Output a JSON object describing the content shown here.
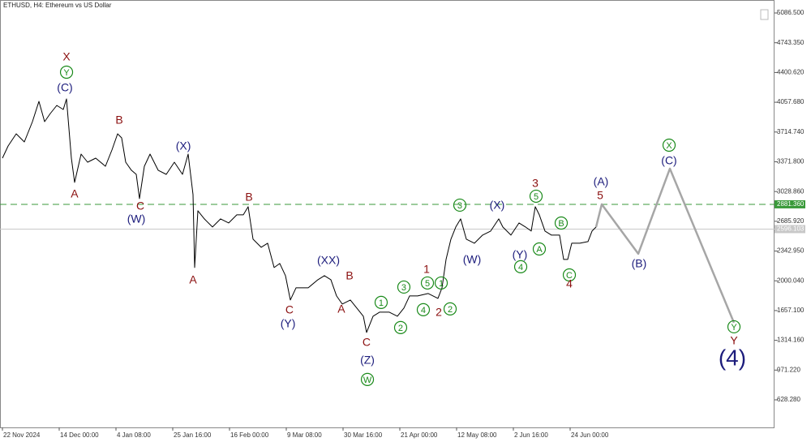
{
  "chart_data": {
    "type": "line",
    "title": "ETHUSD, H4:  Ethereum vs US Dollar",
    "xlim": [
      -0.043,
      13.6
    ],
    "ylim": [
      310.6,
      5217.3
    ],
    "xticks": [
      {
        "value": 0,
        "label": "22 Nov 2024"
      },
      {
        "value": 1,
        "label": "14 Dec 00:00"
      },
      {
        "value": 2,
        "label": "4 Jan 08:00"
      },
      {
        "value": 3,
        "label": "25 Jan 16:00"
      },
      {
        "value": 4,
        "label": "16 Feb 00:00"
      },
      {
        "value": 5,
        "label": "9 Mar 08:00"
      },
      {
        "value": 6,
        "label": "30 Mar 16:00"
      },
      {
        "value": 7,
        "label": "21 Apr 00:00"
      },
      {
        "value": 8,
        "label": "12 May 08:00"
      },
      {
        "value": 9,
        "label": "2 Jun 16:00"
      },
      {
        "value": 10,
        "label": "24 Jun 00:00"
      }
    ],
    "yticks": [
      {
        "value": 628.28,
        "label": "628.280"
      },
      {
        "value": 971.22,
        "label": "971.220"
      },
      {
        "value": 1314.16,
        "label": "1314.160"
      },
      {
        "value": 1657.1,
        "label": "1657.100"
      },
      {
        "value": 2000.04,
        "label": "2000.040"
      },
      {
        "value": 2342.95,
        "label": "2342.950"
      },
      {
        "value": 2685.92,
        "label": "2685.920"
      },
      {
        "value": 3028.86,
        "label": "3028.860"
      },
      {
        "value": 3371.8,
        "label": "3371.800"
      },
      {
        "value": 3714.74,
        "label": "3714.740"
      },
      {
        "value": 4057.68,
        "label": "4057.680"
      },
      {
        "value": 4400.62,
        "label": "4400.620"
      },
      {
        "value": 4743.35,
        "label": "4743.350"
      },
      {
        "value": 5086.5,
        "label": "5086.500"
      }
    ],
    "series": [
      {
        "color": "#000000",
        "x": [
          0,
          0.1,
          0.243,
          0.386,
          0.529,
          0.643,
          0.743,
          0.843,
          0.957,
          1.071,
          1.129,
          1.214,
          1.271,
          1.386,
          1.5,
          1.643,
          1.814,
          1.929,
          2.029,
          2.1,
          2.171,
          2.271,
          2.357,
          2.414,
          2.5,
          2.6,
          2.743,
          2.886,
          3.029,
          3.171,
          3.271,
          3.357,
          3.386,
          3.443,
          3.557,
          3.7,
          3.843,
          3.986,
          4.129,
          4.243,
          4.329,
          4.414,
          4.557,
          4.671,
          4.786,
          4.886,
          4.986,
          5.071,
          5.171,
          5.386,
          5.557,
          5.671,
          5.786,
          5.886,
          5.986,
          6.129,
          6.243,
          6.357,
          6.414,
          6.529,
          6.643,
          6.814,
          6.957,
          7.071,
          7.171,
          7.314,
          7.5,
          7.671,
          7.743,
          7.814,
          7.9,
          7.986,
          8.071,
          8.171,
          8.314,
          8.457,
          8.6,
          8.743,
          8.814,
          8.957,
          9.1,
          9.214,
          9.314,
          9.386,
          9.457,
          9.557,
          9.671,
          9.814,
          9.886,
          9.957,
          10.029,
          10.171,
          10.314,
          10.386,
          10.457
        ],
        "values": [
          3413.9,
          3554.1,
          3694.2,
          3600.8,
          3834.4,
          4068.0,
          3834.4,
          3927.8,
          4021.3,
          3974.6,
          4096.0,
          3413.9,
          3133.6,
          3460.6,
          3367.2,
          3413.9,
          3320.5,
          3507.4,
          3694.2,
          3647.5,
          3367.2,
          3273.8,
          3227.0,
          2946.7,
          3320.5,
          3460.6,
          3273.8,
          3227.0,
          3367.2,
          3227.0,
          3460.6,
          2993.4,
          2152.5,
          2806.6,
          2713.1,
          2619.7,
          2713.1,
          2666.4,
          2759.8,
          2759.8,
          2853.3,
          2479.5,
          2386.1,
          2432.8,
          2152.5,
          2199.2,
          2059.0,
          1778.7,
          1918.9,
          1918.9,
          2012.3,
          2059.0,
          2012.3,
          1825.4,
          1732.0,
          1778.7,
          1685.3,
          1591.8,
          1405.0,
          1591.8,
          1638.5,
          1638.5,
          1591.8,
          1685.3,
          1825.4,
          1825.4,
          1853.5,
          1797.4,
          1918.9,
          2245.9,
          2479.5,
          2619.7,
          2713.1,
          2479.5,
          2432.8,
          2526.2,
          2573.0,
          2713.1,
          2619.7,
          2526.2,
          2666.4,
          2619.7,
          2573.0,
          2853.3,
          2759.8,
          2573.0,
          2526.2,
          2526.2,
          2245.9,
          2245.9,
          2432.8,
          2432.8,
          2451.5,
          2573.0,
          2619.7
        ]
      },
      {
        "color": "#a6a6a6",
        "x": [
          10.457,
          10.557,
          11.2,
          11.757,
          12.886
        ],
        "values": [
          2619.7,
          2881.3,
          2311.3,
          3292.5,
          1517.1
        ]
      }
    ],
    "hlines": [
      {
        "value": 2881.36,
        "label": "2881.360",
        "color": "#3a9a3a",
        "dashed": true
      },
      {
        "value": 2596.103,
        "label": "2596.103",
        "color": "#c8c8c8",
        "dashed": false
      }
    ],
    "wave_colors": {
      "red": "#8b1010",
      "navy": "#1c1c7c",
      "green": "#1a8a1a"
    },
    "annotations": [
      {
        "text": "X",
        "x": 1.129,
        "y": 4582,
        "color": "red"
      },
      {
        "text": "Y",
        "x": 1.129,
        "y": 4404,
        "color": "green",
        "circled": true
      },
      {
        "text": "(C)",
        "x": 1.1,
        "y": 4227,
        "color": "navy"
      },
      {
        "text": "B",
        "x": 2.057,
        "y": 3853,
        "color": "red"
      },
      {
        "text": "A",
        "x": 1.271,
        "y": 3003,
        "color": "red"
      },
      {
        "text": "C",
        "x": 2.429,
        "y": 2863,
        "color": "red"
      },
      {
        "text": "(W)",
        "x": 2.357,
        "y": 2713,
        "color": "navy"
      },
      {
        "text": "(X)",
        "x": 3.186,
        "y": 3554,
        "color": "navy"
      },
      {
        "text": "A",
        "x": 3.357,
        "y": 2012,
        "color": "red"
      },
      {
        "text": "B",
        "x": 4.343,
        "y": 2965,
        "color": "red"
      },
      {
        "text": "C",
        "x": 5.057,
        "y": 1667,
        "color": "red"
      },
      {
        "text": "(Y)",
        "x": 5.029,
        "y": 1508,
        "color": "navy"
      },
      {
        "text": "(XX)",
        "x": 5.743,
        "y": 2237,
        "color": "navy"
      },
      {
        "text": "B",
        "x": 6.114,
        "y": 2059,
        "color": "red"
      },
      {
        "text": "A",
        "x": 5.971,
        "y": 1676,
        "color": "red"
      },
      {
        "text": "1",
        "x": 6.671,
        "y": 1751,
        "color": "green",
        "circled": true
      },
      {
        "text": "C",
        "x": 6.414,
        "y": 1293,
        "color": "red"
      },
      {
        "text": "(Z)",
        "x": 6.429,
        "y": 1087,
        "color": "navy"
      },
      {
        "text": "W",
        "x": 6.429,
        "y": 863,
        "color": "green",
        "circled": true
      },
      {
        "text": "2",
        "x": 7.014,
        "y": 1461,
        "color": "green",
        "circled": true
      },
      {
        "text": "3",
        "x": 7.071,
        "y": 1928,
        "color": "green",
        "circled": true
      },
      {
        "text": "4",
        "x": 7.414,
        "y": 1667,
        "color": "green",
        "circled": true
      },
      {
        "text": "5",
        "x": 7.486,
        "y": 1975,
        "color": "green",
        "circled": true
      },
      {
        "text": "1",
        "x": 7.729,
        "y": 1975,
        "color": "green",
        "circled": true
      },
      {
        "text": "1",
        "x": 7.471,
        "y": 2134,
        "color": "red"
      },
      {
        "text": "2",
        "x": 7.686,
        "y": 1639,
        "color": "red"
      },
      {
        "text": "2",
        "x": 7.886,
        "y": 1676,
        "color": "green",
        "circled": true
      },
      {
        "text": "3",
        "x": 8.057,
        "y": 2872,
        "color": "green",
        "circled": true
      },
      {
        "text": "(W)",
        "x": 8.271,
        "y": 2246,
        "color": "navy"
      },
      {
        "text": "(X)",
        "x": 8.714,
        "y": 2872,
        "color": "navy"
      },
      {
        "text": "(Y)",
        "x": 9.114,
        "y": 2302,
        "color": "navy"
      },
      {
        "text": "4",
        "x": 9.129,
        "y": 2162,
        "color": "green",
        "circled": true
      },
      {
        "text": "A",
        "x": 9.457,
        "y": 2367,
        "color": "green",
        "circled": true
      },
      {
        "text": "3",
        "x": 9.386,
        "y": 3124,
        "color": "red"
      },
      {
        "text": "5",
        "x": 9.4,
        "y": 2975,
        "color": "green",
        "circled": true
      },
      {
        "text": "B",
        "x": 9.843,
        "y": 2666,
        "color": "green",
        "circled": true
      },
      {
        "text": "C",
        "x": 9.986,
        "y": 2068,
        "color": "green",
        "circled": true
      },
      {
        "text": "4",
        "x": 9.986,
        "y": 1966,
        "color": "red"
      },
      {
        "text": "(A)",
        "x": 10.543,
        "y": 3143,
        "color": "navy"
      },
      {
        "text": "5",
        "x": 10.529,
        "y": 2984,
        "color": "red"
      },
      {
        "text": "(B)",
        "x": 11.214,
        "y": 2199,
        "color": "navy"
      },
      {
        "text": "X",
        "x": 11.743,
        "y": 3563,
        "color": "green",
        "circled": true
      },
      {
        "text": "(C)",
        "x": 11.743,
        "y": 3386,
        "color": "navy"
      },
      {
        "text": "Y",
        "x": 12.886,
        "y": 1470,
        "color": "green",
        "circled": true
      },
      {
        "text": "Y",
        "x": 12.886,
        "y": 1312,
        "color": "red"
      },
      {
        "text": "(4)",
        "x": 12.857,
        "y": 1106,
        "color": "navy",
        "large": true
      }
    ]
  }
}
